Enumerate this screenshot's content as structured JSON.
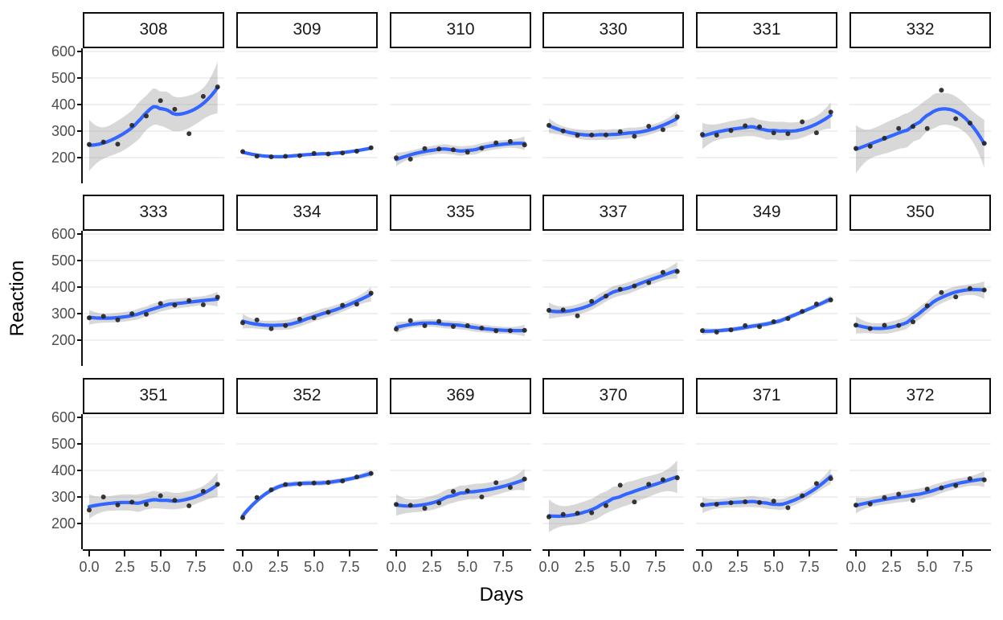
{
  "chart_data": {
    "type": "scatter",
    "smooth_method": "loess",
    "title": "",
    "xlabel": "Days",
    "ylabel": "Reaction",
    "x": [
      0,
      1,
      2,
      3,
      4,
      5,
      6,
      7,
      8,
      9
    ],
    "x_ticks": {
      "labels": [
        "0.0",
        "2.5",
        "5.0",
        "7.5"
      ],
      "values": [
        0,
        2.5,
        5,
        7.5
      ]
    },
    "y_ticks": {
      "labels": [
        "200",
        "300",
        "400",
        "500",
        "600"
      ],
      "values": [
        200,
        300,
        400,
        500,
        600
      ]
    },
    "xlim": [
      -0.5,
      9.5
    ],
    "ylim": [
      105,
      610
    ],
    "layout": {
      "rows": 3,
      "cols": 6,
      "grid": "horizontal-major-only",
      "legend": "none",
      "facet_variable": "Subject"
    },
    "facets": [
      {
        "label": "308",
        "values": [
          249.6,
          258.7,
          250.8,
          321.4,
          356.9,
          414.7,
          382.2,
          290.1,
          430.6,
          466.4
        ]
      },
      {
        "label": "309",
        "values": [
          222.7,
          205.3,
          203.0,
          204.7,
          207.7,
          216.0,
          213.6,
          217.7,
          224.3,
          237.3
        ]
      },
      {
        "label": "310",
        "values": [
          199.1,
          194.3,
          234.3,
          232.8,
          229.3,
          220.5,
          235.4,
          255.8,
          261.0,
          247.5
        ]
      },
      {
        "label": "330",
        "values": [
          321.5,
          300.4,
          283.9,
          285.1,
          285.8,
          297.6,
          280.2,
          318.3,
          305.3,
          354.0
        ]
      },
      {
        "label": "331",
        "values": [
          287.6,
          285.0,
          301.8,
          320.1,
          316.3,
          293.3,
          290.1,
          334.8,
          293.7,
          371.6
        ]
      },
      {
        "label": "332",
        "values": [
          234.9,
          242.8,
          273.0,
          309.8,
          317.5,
          310.0,
          454.2,
          346.8,
          330.3,
          253.9
        ]
      },
      {
        "label": "333",
        "values": [
          283.8,
          289.6,
          276.8,
          299.8,
          297.2,
          338.2,
          332.0,
          348.8,
          333.4,
          362.0
        ]
      },
      {
        "label": "334",
        "values": [
          265.5,
          276.2,
          243.4,
          254.7,
          279.0,
          284.2,
          305.5,
          331.5,
          335.7,
          377.3
        ]
      },
      {
        "label": "335",
        "values": [
          241.6,
          273.9,
          254.5,
          270.8,
          251.5,
          254.6,
          245.5,
          235.3,
          235.8,
          237.2
        ]
      },
      {
        "label": "337",
        "values": [
          312.4,
          313.8,
          291.6,
          346.1,
          365.7,
          391.8,
          404.3,
          416.7,
          455.9,
          458.9
        ]
      },
      {
        "label": "349",
        "values": [
          236.1,
          230.3,
          238.9,
          254.9,
          250.7,
          269.8,
          281.6,
          308.1,
          336.3,
          351.6
        ]
      },
      {
        "label": "350",
        "values": [
          256.3,
          243.5,
          256.2,
          255.5,
          268.9,
          329.7,
          379.4,
          362.9,
          394.5,
          389.1
        ]
      },
      {
        "label": "351",
        "values": [
          250.5,
          300.1,
          269.9,
          280.6,
          271.8,
          304.6,
          287.7,
          266.6,
          321.5,
          347.6
        ]
      },
      {
        "label": "352",
        "values": [
          221.7,
          298.2,
          326.9,
          346.9,
          348.7,
          352.8,
          354.4,
          360.4,
          375.6,
          388.5
        ]
      },
      {
        "label": "369",
        "values": [
          271.9,
          268.4,
          257.2,
          277.7,
          321.0,
          323.0,
          300.0,
          354.0,
          336.0,
          368.0
        ]
      },
      {
        "label": "370",
        "values": [
          225.3,
          234.5,
          238.9,
          240.5,
          267.5,
          344.2,
          281.1,
          347.6,
          365.2,
          372.2
        ]
      },
      {
        "label": "371",
        "values": [
          269.9,
          272.4,
          277.9,
          281.8,
          279.2,
          284.5,
          259.3,
          304.6,
          350.8,
          369.5
        ]
      },
      {
        "label": "372",
        "values": [
          269.4,
          273.5,
          297.6,
          310.6,
          287.2,
          329.6,
          334.5,
          343.2,
          369.1,
          364.1
        ]
      }
    ]
  },
  "style": {
    "line_color": "#3366FF",
    "band_color": "rgba(125,125,125,0.30)",
    "point_color": "#262626",
    "grid_color": "#ebebeb",
    "axis_color": "#0d0d0d",
    "tick_label_color": "#4d4d4d",
    "strip_background": "#ffffff",
    "strip_border": "#0d0d0d",
    "panel_background": "#ffffff"
  }
}
